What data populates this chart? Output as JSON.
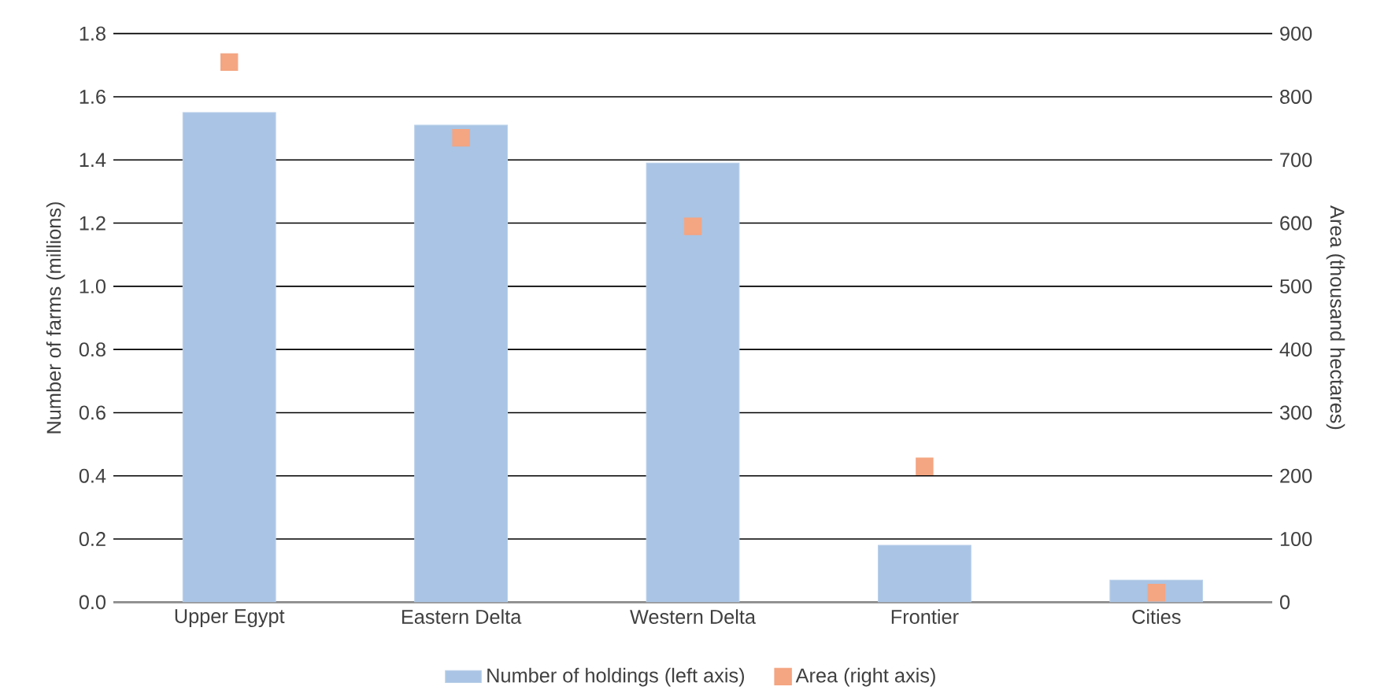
{
  "chart_data": {
    "type": "bar",
    "ylabel": "Number of farms (millions)",
    "y2label": "Area (thousand hectares)",
    "categories": [
      "Upper Egypt",
      "Eastern Delta",
      "Western Delta",
      "Frontier",
      "Cities"
    ],
    "series": [
      {
        "name": "Number of holdings (left axis)",
        "color": "#a9c4e4",
        "values": [
          1.55,
          1.51,
          1.39,
          0.18,
          0.07
        ]
      },
      {
        "name": "Area (right axis)",
        "type": "scatter",
        "axis": "y2",
        "marker": "square",
        "color": "#f4a582",
        "values": [
          855,
          735,
          595,
          215,
          15
        ]
      }
    ],
    "ylim": [
      0,
      1.8
    ],
    "yticks": [
      {
        "value": 0,
        "label": "0.0"
      },
      0.2,
      0.4,
      0.6,
      0.8,
      {
        "value": 1,
        "label": "1.0"
      },
      1.2,
      1.4,
      1.6,
      1.8
    ],
    "y2lim": [
      0,
      900
    ],
    "y2ticks": [
      0,
      100,
      200,
      300,
      400,
      500,
      600,
      700,
      800,
      900
    ],
    "grid": "y",
    "legend": "bottom"
  }
}
